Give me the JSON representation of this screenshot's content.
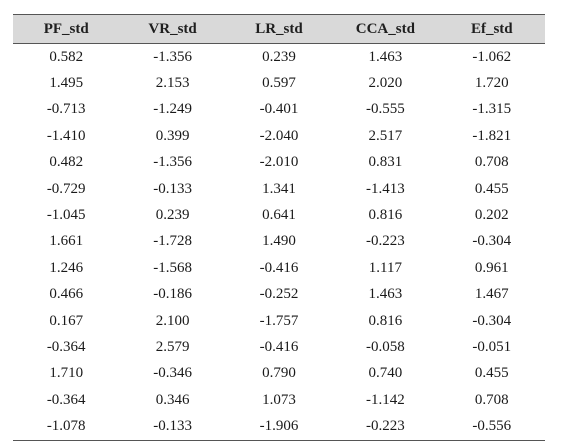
{
  "table": {
    "headers": [
      "PF_std",
      "VR_std",
      "LR_std",
      "CCA_std",
      "Ef_std"
    ],
    "rows": [
      [
        "0.582",
        "-1.356",
        "0.239",
        "1.463",
        "-1.062"
      ],
      [
        "1.495",
        "2.153",
        "0.597",
        "2.020",
        "1.720"
      ],
      [
        "-0.713",
        "-1.249",
        "-0.401",
        "-0.555",
        "-1.315"
      ],
      [
        "-1.410",
        "0.399",
        "-2.040",
        "2.517",
        "-1.821"
      ],
      [
        "0.482",
        "-1.356",
        "-2.010",
        "0.831",
        "0.708"
      ],
      [
        "-0.729",
        "-0.133",
        "1.341",
        "-1.413",
        "0.455"
      ],
      [
        "-1.045",
        "0.239",
        "0.641",
        "0.816",
        "0.202"
      ],
      [
        "1.661",
        "-1.728",
        "1.490",
        "-0.223",
        "-0.304"
      ],
      [
        "1.246",
        "-1.568",
        "-0.416",
        "1.117",
        "0.961"
      ],
      [
        "0.466",
        "-0.186",
        "-0.252",
        "1.463",
        "1.467"
      ],
      [
        "0.167",
        "2.100",
        "-1.757",
        "0.816",
        "-0.304"
      ],
      [
        "-0.364",
        "2.579",
        "-0.416",
        "-0.058",
        "-0.051"
      ],
      [
        "1.710",
        "-0.346",
        "0.790",
        "0.740",
        "0.455"
      ],
      [
        "-0.364",
        "0.346",
        "1.073",
        "-1.142",
        "0.708"
      ],
      [
        "-1.078",
        "-0.133",
        "-1.906",
        "-0.223",
        "-0.556"
      ]
    ]
  }
}
